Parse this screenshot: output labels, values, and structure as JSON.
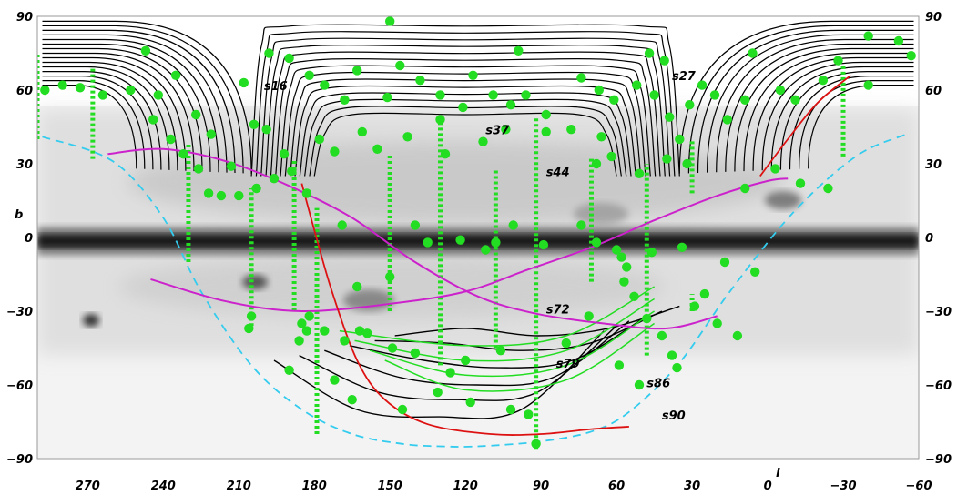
{
  "chart_data": {
    "type": "scatter",
    "xlabel": "l",
    "ylabel": "b",
    "xlim": [
      290,
      -60
    ],
    "ylim": [
      -90,
      90
    ],
    "x_ticks": [
      "270",
      "240",
      "210",
      "180",
      "150",
      "120",
      "90",
      "60",
      "30",
      "0",
      "−30",
      "−60"
    ],
    "x_tick_values": [
      270,
      240,
      210,
      180,
      150,
      120,
      90,
      60,
      30,
      0,
      -30,
      -60
    ],
    "y_ticks": [
      "90",
      "60",
      "30",
      "0",
      "−30",
      "−60",
      "−90"
    ],
    "y_tick_values": [
      90,
      60,
      30,
      0,
      -30,
      -60,
      -90
    ],
    "colors": {
      "scans": "#000000",
      "points": "#22dd22",
      "stripes": "#22dd22",
      "galactic_plane": "#cc22cc",
      "ecliptic": "#dd1111",
      "boundary": "#33ccee",
      "background": "#f2f2f2",
      "milky_way": "#1a1a1a"
    },
    "scan_labels": [
      {
        "text": "s16",
        "l": 200,
        "b": 60
      },
      {
        "text": "s27",
        "l": 38,
        "b": 64
      },
      {
        "text": "s37",
        "l": 112,
        "b": 42
      },
      {
        "text": "s44",
        "l": 88,
        "b": 25
      },
      {
        "text": "s72",
        "l": 88,
        "b": -31
      },
      {
        "text": "s79",
        "l": 84,
        "b": -53
      },
      {
        "text": "s86",
        "l": 48,
        "b": -61
      },
      {
        "text": "s90",
        "l": 42,
        "b": -74
      }
    ],
    "north_scans": [
      {
        "name": "north-left",
        "l_start": 288,
        "l_end": 205,
        "b_top": 88,
        "b_bottom": 26,
        "count": 15
      },
      {
        "name": "north-right",
        "l_start": -58,
        "l_end": 35,
        "b_top": 88,
        "b_bottom": 26,
        "count": 15
      }
    ],
    "south_scans": [
      {
        "b_bottom": -40,
        "l_left": 148,
        "l_right": 35
      },
      {
        "b_bottom": -46,
        "l_left": 156,
        "l_right": 42
      },
      {
        "b_bottom": -53,
        "l_left": 166,
        "l_right": 48
      },
      {
        "b_bottom": -60,
        "l_left": 176,
        "l_right": 55
      },
      {
        "b_bottom": -66,
        "l_left": 186,
        "l_right": 60
      },
      {
        "b_bottom": -73,
        "l_left": 196,
        "l_right": 65
      }
    ],
    "points": [
      [
        280,
        62
      ],
      [
        287,
        60
      ],
      [
        273,
        61
      ],
      [
        264,
        58
      ],
      [
        253,
        60
      ],
      [
        242,
        58
      ],
      [
        247,
        76
      ],
      [
        235,
        66
      ],
      [
        244,
        48
      ],
      [
        227,
        50
      ],
      [
        221,
        42
      ],
      [
        237,
        40
      ],
      [
        232,
        34
      ],
      [
        226,
        28
      ],
      [
        213,
        29
      ],
      [
        217,
        17
      ],
      [
        222,
        18
      ],
      [
        210,
        17
      ],
      [
        203,
        20
      ],
      [
        196,
        24
      ],
      [
        192,
        34
      ],
      [
        199,
        44
      ],
      [
        204,
        46
      ],
      [
        208,
        63
      ],
      [
        198,
        75
      ],
      [
        190,
        73
      ],
      [
        182,
        66
      ],
      [
        168,
        56
      ],
      [
        176,
        62
      ],
      [
        163,
        68
      ],
      [
        151,
        57
      ],
      [
        146,
        70
      ],
      [
        138,
        64
      ],
      [
        130,
        58
      ],
      [
        121,
        53
      ],
      [
        117,
        66
      ],
      [
        109,
        58
      ],
      [
        102,
        54
      ],
      [
        99,
        76
      ],
      [
        96,
        58
      ],
      [
        88,
        50
      ],
      [
        78,
        44
      ],
      [
        74,
        65
      ],
      [
        67,
        60
      ],
      [
        61,
        56
      ],
      [
        52,
        62
      ],
      [
        47,
        75
      ],
      [
        41,
        72
      ],
      [
        45,
        58
      ],
      [
        39,
        49
      ],
      [
        31,
        54
      ],
      [
        26,
        62
      ],
      [
        21,
        58
      ],
      [
        16,
        48
      ],
      [
        9,
        56
      ],
      [
        6,
        75
      ],
      [
        -5,
        60
      ],
      [
        -11,
        56
      ],
      [
        -22,
        64
      ],
      [
        -28,
        72
      ],
      [
        -40,
        82
      ],
      [
        -52,
        80
      ],
      [
        -57,
        74
      ],
      [
        -40,
        62
      ],
      [
        150,
        88
      ],
      [
        88,
        43
      ],
      [
        113,
        39
      ],
      [
        130,
        48
      ],
      [
        143,
        41
      ],
      [
        161,
        43
      ],
      [
        178,
        40
      ],
      [
        189,
        27
      ],
      [
        183,
        18
      ],
      [
        172,
        35
      ],
      [
        155,
        36
      ],
      [
        128,
        34
      ],
      [
        104,
        44
      ],
      [
        66,
        41
      ],
      [
        62,
        33
      ],
      [
        51,
        26
      ],
      [
        35,
        40
      ],
      [
        32,
        30
      ],
      [
        9,
        20
      ],
      [
        -3,
        28
      ],
      [
        -13,
        22
      ],
      [
        -24,
        20
      ],
      [
        68,
        30
      ],
      [
        40,
        32
      ],
      [
        60,
        -5
      ],
      [
        56,
        -12
      ],
      [
        57,
        -18
      ],
      [
        53,
        -24
      ],
      [
        48,
        -33
      ],
      [
        42,
        -40
      ],
      [
        38,
        -48
      ],
      [
        36,
        -53
      ],
      [
        25,
        -23
      ],
      [
        71,
        -32
      ],
      [
        80,
        -43
      ],
      [
        59,
        -52
      ],
      [
        51,
        -60
      ],
      [
        106,
        -46
      ],
      [
        120,
        -50
      ],
      [
        126,
        -55
      ],
      [
        140,
        -47
      ],
      [
        149,
        -45
      ],
      [
        159,
        -39
      ],
      [
        168,
        -42
      ],
      [
        176,
        -38
      ],
      [
        186,
        -42
      ],
      [
        183,
        -38
      ],
      [
        190,
        -54
      ],
      [
        205,
        -32
      ],
      [
        206,
        -37
      ],
      [
        162,
        -38
      ],
      [
        165,
        -66
      ],
      [
        172,
        -58
      ],
      [
        145,
        -70
      ],
      [
        131,
        -63
      ],
      [
        118,
        -67
      ],
      [
        102,
        -70
      ],
      [
        95,
        -72
      ],
      [
        92,
        -84
      ],
      [
        108,
        -2
      ],
      [
        150,
        -16
      ],
      [
        163,
        -20
      ],
      [
        182,
        -32
      ],
      [
        185,
        -35
      ],
      [
        169,
        5
      ],
      [
        140,
        5
      ],
      [
        135,
        -2
      ],
      [
        122,
        -1
      ],
      [
        112,
        -5
      ],
      [
        101,
        5
      ],
      [
        89,
        -3
      ],
      [
        74,
        5
      ],
      [
        68,
        -2
      ],
      [
        58,
        -8
      ],
      [
        46,
        -6
      ],
      [
        34,
        -4
      ],
      [
        17,
        -10
      ],
      [
        5,
        -14
      ],
      [
        29,
        -28
      ],
      [
        20,
        -35
      ],
      [
        12,
        -40
      ]
    ],
    "stripes": [
      {
        "l": 290,
        "b_from": 40,
        "b_to": 75
      },
      {
        "l": 268,
        "b_from": 32,
        "b_to": 70
      },
      {
        "l": 230,
        "b_from": -10,
        "b_to": 38
      },
      {
        "l": 205,
        "b_from": -36,
        "b_to": 20
      },
      {
        "l": 188,
        "b_from": -30,
        "b_to": 32
      },
      {
        "l": 179,
        "b_from": -80,
        "b_to": 12
      },
      {
        "l": 150,
        "b_from": -30,
        "b_to": 34
      },
      {
        "l": 130,
        "b_from": -52,
        "b_to": 48
      },
      {
        "l": 108,
        "b_from": -45,
        "b_to": 28
      },
      {
        "l": 92,
        "b_from": -86,
        "b_to": 49
      },
      {
        "l": 70,
        "b_from": -18,
        "b_to": 32
      },
      {
        "l": 48,
        "b_from": -48,
        "b_to": 30
      },
      {
        "l": 30,
        "b_from": -30,
        "b_to": -23
      },
      {
        "l": 30,
        "b_from": 18,
        "b_to": 40
      },
      {
        "l": -30,
        "b_from": 33,
        "b_to": 70
      }
    ],
    "galactic_curve": [
      [
        262,
        34
      ],
      [
        240,
        36
      ],
      [
        215,
        31
      ],
      [
        190,
        21
      ],
      [
        165,
        8
      ],
      [
        140,
        -10
      ],
      [
        115,
        -24
      ],
      [
        92,
        -31
      ],
      [
        65,
        -35
      ],
      [
        40,
        -37
      ],
      [
        20,
        -32
      ]
    ],
    "galactic_curve2": [
      [
        245,
        -17
      ],
      [
        215,
        -26
      ],
      [
        185,
        -30
      ],
      [
        150,
        -27
      ],
      [
        120,
        -22
      ],
      [
        95,
        -13
      ],
      [
        70,
        -4
      ],
      [
        45,
        7
      ],
      [
        20,
        17
      ],
      [
        0,
        23
      ],
      [
        -8,
        24
      ]
    ],
    "ecliptic_curve": [
      [
        185,
        22
      ],
      [
        180,
        3
      ],
      [
        173,
        -22
      ],
      [
        163,
        -50
      ],
      [
        152,
        -66
      ],
      [
        135,
        -76
      ],
      [
        110,
        -80
      ],
      [
        90,
        -80
      ],
      [
        70,
        -78
      ],
      [
        55,
        -77
      ]
    ],
    "ecliptic_curve2": [
      [
        3,
        25
      ],
      [
        -8,
        40
      ],
      [
        -20,
        55
      ],
      [
        -33,
        66
      ]
    ],
    "boundary_curve": [
      [
        288,
        41
      ],
      [
        260,
        31
      ],
      [
        240,
        8
      ],
      [
        225,
        -22
      ],
      [
        205,
        -52
      ],
      [
        185,
        -70
      ],
      [
        165,
        -80
      ],
      [
        145,
        -84
      ],
      [
        130,
        -85
      ],
      [
        115,
        -85
      ],
      [
        90,
        -83
      ],
      [
        70,
        -79
      ],
      [
        55,
        -71
      ],
      [
        35,
        -51
      ],
      [
        15,
        -22
      ],
      [
        -10,
        10
      ],
      [
        -35,
        33
      ],
      [
        -55,
        42
      ]
    ]
  }
}
